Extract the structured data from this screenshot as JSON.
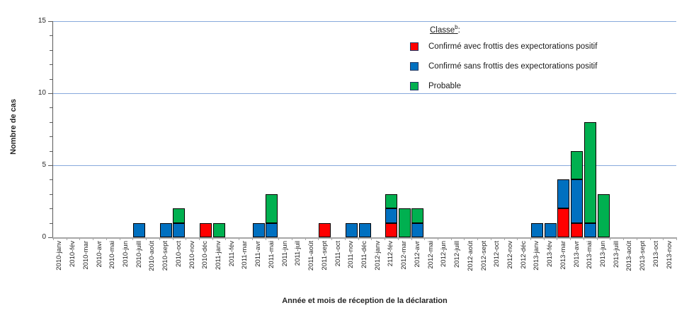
{
  "chart_data": {
    "type": "bar",
    "stacked": true,
    "xlabel": "Année et mois de réception de la déclaration",
    "ylabel": "Nombre de cas",
    "ylim": [
      0,
      15
    ],
    "yticks": [
      0,
      5,
      10,
      15
    ],
    "grid": "horizontal-major",
    "legend": {
      "title": "Classe",
      "title_superscript": "b",
      "title_colon": ":",
      "position": "top-right-inside"
    },
    "categories": [
      "2010-janv",
      "2010-fév",
      "2010-mar",
      "2010-avr",
      "2010-mai",
      "2010-jun",
      "2010-juill",
      "2010-août",
      "2010-sept",
      "2010-oct",
      "2010-nov",
      "2010-déc",
      "2011-janv",
      "2011-fév",
      "2011-mar",
      "2011-avr",
      "2011-mai",
      "2011-jun",
      "2011-juil",
      "2011-août",
      "2011-sept",
      "2011-oct",
      "2011-nov",
      "2011-déc",
      "2012-janv",
      "2112-fév",
      "2012-mar",
      "2012-avr",
      "2012-mai",
      "2012-jun",
      "2012-juill",
      "2012-août",
      "2012-sept",
      "2012-oct",
      "2012-nov",
      "2012-déc",
      "2013-janv",
      "2013-fév",
      "2013-mar",
      "2013-avr",
      "2013-mai",
      "2013-jun",
      "2013-juill",
      "2013-août",
      "2013-sept",
      "2013-oct",
      "2013-nov"
    ],
    "series": [
      {
        "name": "Confirmé avec frottis des expectorations positif",
        "color": "#FF0000",
        "values": [
          0,
          0,
          0,
          0,
          0,
          0,
          0,
          0,
          0,
          0,
          0,
          1,
          0,
          0,
          0,
          0,
          0,
          0,
          0,
          0,
          1,
          0,
          0,
          0,
          0,
          1,
          0,
          0,
          0,
          0,
          0,
          0,
          0,
          0,
          0,
          0,
          0,
          0,
          2,
          1,
          0,
          0,
          0,
          0,
          0,
          0,
          0
        ]
      },
      {
        "name": "Confirmé sans frottis des expectorations positif",
        "color": "#0070C0",
        "values": [
          0,
          0,
          0,
          0,
          0,
          0,
          1,
          0,
          1,
          1,
          0,
          0,
          0,
          0,
          0,
          1,
          1,
          0,
          0,
          0,
          0,
          0,
          1,
          1,
          0,
          1,
          0,
          1,
          0,
          0,
          0,
          0,
          0,
          0,
          0,
          0,
          1,
          1,
          2,
          3,
          1,
          0,
          0,
          0,
          0,
          0,
          0
        ]
      },
      {
        "name": "Probable",
        "color": "#00B050",
        "values": [
          0,
          0,
          0,
          0,
          0,
          0,
          0,
          0,
          0,
          1,
          0,
          0,
          1,
          0,
          0,
          0,
          2,
          0,
          0,
          0,
          0,
          0,
          0,
          0,
          0,
          1,
          2,
          1,
          0,
          0,
          0,
          0,
          0,
          0,
          0,
          0,
          0,
          0,
          0,
          2,
          7,
          3,
          0,
          0,
          0,
          0,
          0
        ]
      }
    ]
  },
  "colors": {
    "gridline": "#87A9DC",
    "y_axis_line": "#595959",
    "x_axis_line": "#A6A6A6",
    "bar_border": "#000000",
    "legend_marker_border": "#1F3864",
    "text": "#262626"
  }
}
